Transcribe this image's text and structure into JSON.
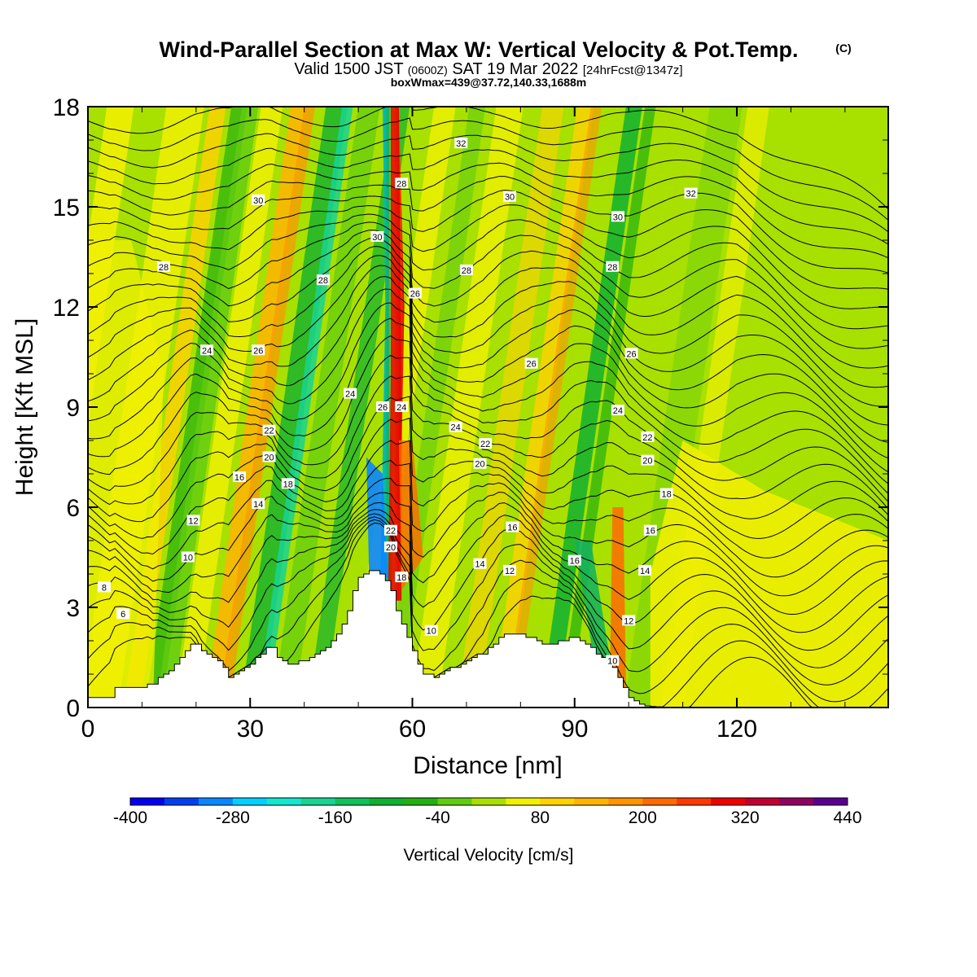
{
  "titles": {
    "main": "Wind-Parallel Section at Max W: Vertical Velocity & Pot.Temp.",
    "copyright": "(C)",
    "valid_prefix": "Valid 1500 JST",
    "valid_utc": "(0600Z)",
    "valid_date": "SAT 19 Mar 2022",
    "forecast": "[24hrFcst@1347z]",
    "box": "boxWmax=439@37.72,140.33,1688m"
  },
  "chart_data": {
    "type": "heatmap",
    "xlabel": "Distance [nm]",
    "ylabel": "Height [Kft MSL]",
    "xlim": [
      0,
      148
    ],
    "ylim": [
      0,
      18
    ],
    "x_ticks": [
      "0",
      "30",
      "60",
      "90",
      "120"
    ],
    "y_ticks": [
      "0",
      "3",
      "6",
      "9",
      "12",
      "15",
      "18"
    ],
    "terrain": {
      "x": [
        0,
        4,
        5,
        10,
        11,
        12,
        13,
        14,
        15,
        16,
        17,
        18,
        19,
        20,
        21,
        22,
        23,
        24,
        25,
        26,
        27,
        28,
        29,
        30,
        31,
        32,
        33,
        34,
        35,
        36,
        37,
        38,
        39,
        40,
        41,
        42,
        43,
        44,
        45,
        46,
        47,
        48,
        49,
        50,
        51,
        52,
        53,
        54,
        55,
        56,
        57,
        58,
        59,
        60,
        61,
        62,
        63,
        64,
        65,
        66,
        67,
        68,
        69,
        70,
        71,
        72,
        73,
        74,
        75,
        76,
        77,
        78,
        79,
        80,
        81,
        82,
        83,
        84,
        85,
        86,
        87,
        88,
        89,
        90,
        91,
        92,
        93,
        94,
        95,
        96,
        97,
        98,
        99,
        100,
        101,
        102,
        103,
        104,
        105,
        106,
        108,
        110,
        112,
        115,
        118,
        121,
        124,
        127,
        130,
        133,
        136,
        139,
        142,
        145,
        148
      ],
      "y": [
        0.3,
        0.3,
        0.6,
        0.6,
        0.7,
        0.7,
        0.9,
        1.0,
        1.1,
        1.3,
        1.5,
        1.7,
        1.9,
        1.9,
        1.7,
        1.6,
        1.5,
        1.4,
        1.2,
        0.9,
        1.0,
        1.1,
        1.2,
        1.3,
        1.5,
        1.6,
        1.8,
        1.8,
        1.5,
        1.4,
        1.3,
        1.3,
        1.4,
        1.4,
        1.5,
        1.6,
        1.7,
        1.8,
        2.0,
        2.2,
        2.5,
        2.9,
        3.5,
        3.9,
        4.0,
        4.1,
        4.1,
        4.0,
        3.8,
        3.5,
        2.9,
        2.5,
        2.1,
        1.7,
        1.3,
        1.0,
        1.0,
        0.9,
        1.0,
        1.1,
        1.2,
        1.2,
        1.3,
        1.4,
        1.5,
        1.6,
        1.6,
        1.8,
        1.9,
        2.1,
        2.2,
        2.2,
        2.2,
        2.2,
        2.1,
        2.1,
        2.0,
        1.9,
        1.9,
        1.9,
        2.0,
        2.0,
        2.1,
        2.1,
        2.0,
        1.9,
        1.8,
        1.6,
        1.5,
        1.4,
        1.2,
        0.9,
        0.6,
        0.3,
        0.2,
        0.1,
        0.05,
        0.03,
        0.02,
        0,
        0,
        0,
        0,
        0,
        0,
        0,
        0,
        0,
        0,
        0,
        0,
        0,
        0,
        0,
        0
      ]
    },
    "contour_labels": [
      {
        "x": 14,
        "y": 13.2,
        "v": "28"
      },
      {
        "x": 31.5,
        "y": 15.2,
        "v": "30"
      },
      {
        "x": 22,
        "y": 10.7,
        "v": "24"
      },
      {
        "x": 31.5,
        "y": 10.7,
        "v": "26"
      },
      {
        "x": 43.5,
        "y": 12.8,
        "v": "28"
      },
      {
        "x": 53.5,
        "y": 14.1,
        "v": "30"
      },
      {
        "x": 58,
        "y": 15.7,
        "v": "28"
      },
      {
        "x": 60.5,
        "y": 12.4,
        "v": "26"
      },
      {
        "x": 69,
        "y": 16.9,
        "v": "32"
      },
      {
        "x": 78,
        "y": 15.3,
        "v": "30"
      },
      {
        "x": 70,
        "y": 13.1,
        "v": "28"
      },
      {
        "x": 82,
        "y": 10.3,
        "v": "26"
      },
      {
        "x": 98,
        "y": 14.7,
        "v": "30"
      },
      {
        "x": 97,
        "y": 13.2,
        "v": "28"
      },
      {
        "x": 100.5,
        "y": 10.6,
        "v": "26"
      },
      {
        "x": 111.5,
        "y": 15.4,
        "v": "32"
      },
      {
        "x": 48.5,
        "y": 9.4,
        "v": "24"
      },
      {
        "x": 54.5,
        "y": 9.0,
        "v": "26"
      },
      {
        "x": 58,
        "y": 9.0,
        "v": "24"
      },
      {
        "x": 68,
        "y": 8.4,
        "v": "24"
      },
      {
        "x": 98,
        "y": 8.9,
        "v": "24"
      },
      {
        "x": 33.5,
        "y": 8.3,
        "v": "22"
      },
      {
        "x": 73.5,
        "y": 7.9,
        "v": "22"
      },
      {
        "x": 103.5,
        "y": 8.1,
        "v": "22"
      },
      {
        "x": 33.5,
        "y": 7.5,
        "v": "20"
      },
      {
        "x": 72.5,
        "y": 7.3,
        "v": "20"
      },
      {
        "x": 103.5,
        "y": 7.4,
        "v": "20"
      },
      {
        "x": 28,
        "y": 6.9,
        "v": "16"
      },
      {
        "x": 37,
        "y": 6.7,
        "v": "18"
      },
      {
        "x": 107,
        "y": 6.4,
        "v": "18"
      },
      {
        "x": 31.5,
        "y": 6.1,
        "v": "14"
      },
      {
        "x": 19.5,
        "y": 5.6,
        "v": "12"
      },
      {
        "x": 78.5,
        "y": 5.4,
        "v": "16"
      },
      {
        "x": 104,
        "y": 5.3,
        "v": "16"
      },
      {
        "x": 56,
        "y": 5.3,
        "v": "22"
      },
      {
        "x": 56,
        "y": 4.8,
        "v": "20"
      },
      {
        "x": 18.5,
        "y": 4.5,
        "v": "10"
      },
      {
        "x": 72.5,
        "y": 4.3,
        "v": "14"
      },
      {
        "x": 78,
        "y": 4.1,
        "v": "12"
      },
      {
        "x": 90,
        "y": 4.4,
        "v": "16"
      },
      {
        "x": 103,
        "y": 4.1,
        "v": "14"
      },
      {
        "x": 58,
        "y": 3.9,
        "v": "18"
      },
      {
        "x": 3,
        "y": 3.6,
        "v": "8"
      },
      {
        "x": 6.5,
        "y": 2.8,
        "v": "6"
      },
      {
        "x": 100,
        "y": 2.6,
        "v": "12"
      },
      {
        "x": 63.5,
        "y": 2.3,
        "v": "10"
      },
      {
        "x": 97,
        "y": 1.4,
        "v": "10"
      }
    ]
  },
  "colorbar": {
    "title": "Vertical Velocity [cm/s]",
    "colors": [
      "#0000ee",
      "#0040f0",
      "#0a86ff",
      "#00d2ff",
      "#12e8d0",
      "#18d490",
      "#10c058",
      "#10b030",
      "#22b010",
      "#60cc10",
      "#a8e000",
      "#f0f000",
      "#ffd200",
      "#ffb400",
      "#ff9400",
      "#ff6a00",
      "#ff3800",
      "#ee0000",
      "#c00030",
      "#900060",
      "#5a0090"
    ],
    "tick_labels": [
      "-400",
      "-280",
      "-160",
      "-40",
      "80",
      "200",
      "320",
      "440"
    ]
  }
}
